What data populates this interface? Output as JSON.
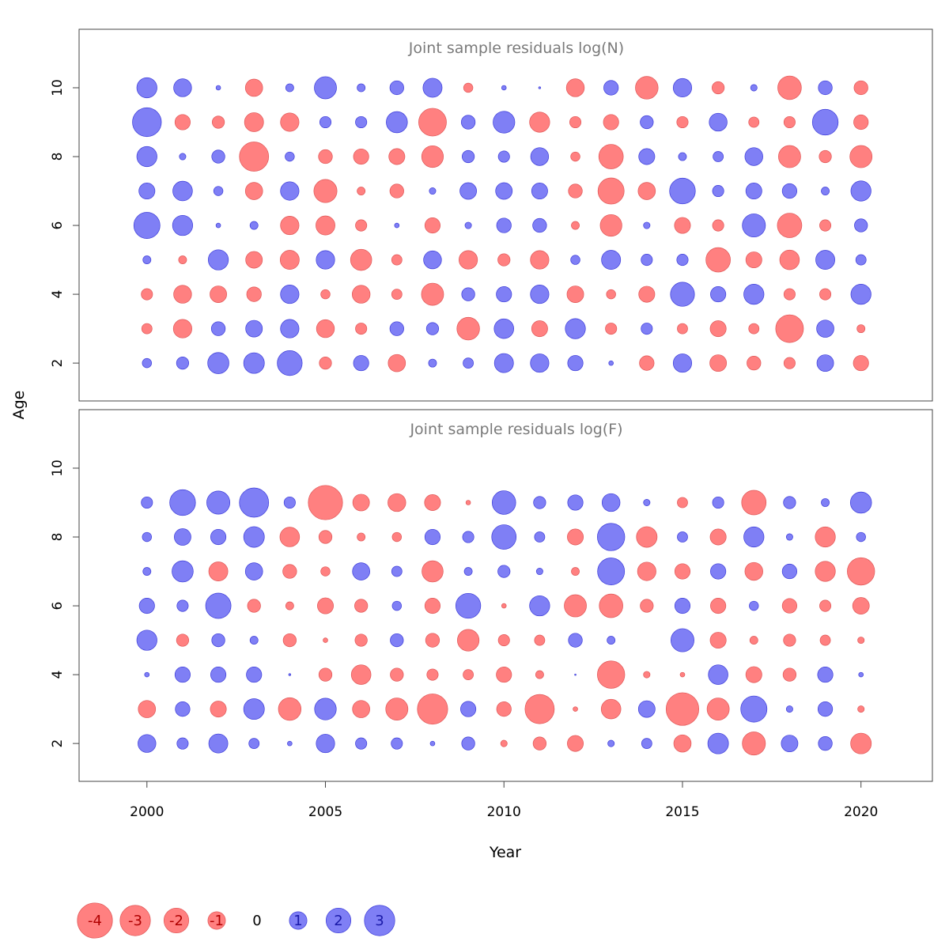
{
  "figure": {
    "ylabel": "Age",
    "xlabel": "Year",
    "x_ticks": [
      2000,
      2005,
      2010,
      2015,
      2020
    ],
    "y_ticks": [
      2,
      4,
      6,
      8,
      10
    ]
  },
  "colors": {
    "positive": "#7f7ff5",
    "positive_stroke": "#3d3dd9",
    "negative": "#ff8080",
    "negative_stroke": "#e05757",
    "title_text": "#7a7a7a",
    "axis": "#444444"
  },
  "chart_data": [
    {
      "type": "scatter",
      "title": "Joint sample residuals log(N)",
      "xlim": [
        1998.1,
        2022.0
      ],
      "ylim": [
        0.9,
        11.7
      ],
      "ages": [
        2,
        3,
        4,
        5,
        6,
        7,
        8,
        9,
        10
      ],
      "years": [
        2000,
        2001,
        2002,
        2003,
        2004,
        2005,
        2006,
        2007,
        2008,
        2009,
        2010,
        2011,
        2012,
        2013,
        2014,
        2015,
        2016,
        2017,
        2018,
        2019,
        2020
      ],
      "values_by_age": {
        "2": [
          0.4,
          0.7,
          2.1,
          2.0,
          2.9,
          -0.7,
          1.1,
          -1.4,
          0.3,
          0.5,
          1.7,
          1.6,
          1.1,
          0.1,
          -1.0,
          1.6,
          -1.3,
          -0.9,
          -0.6,
          1.3,
          -1.1
        ],
        "3": [
          -0.5,
          -1.6,
          0.9,
          1.3,
          1.6,
          -1.5,
          -0.6,
          0.9,
          0.7,
          -2.4,
          1.8,
          -1.2,
          1.9,
          -0.6,
          0.6,
          -0.5,
          -1.2,
          -0.5,
          -3.6,
          1.4,
          -0.3
        ],
        "4": [
          -0.6,
          -1.5,
          -1.3,
          -1.0,
          1.6,
          -0.4,
          -1.5,
          -0.5,
          -2.3,
          0.8,
          1.1,
          1.6,
          -1.3,
          -0.4,
          -1.2,
          2.7,
          1.1,
          1.9,
          -0.6,
          -0.6,
          1.9
        ],
        "5": [
          0.3,
          -0.3,
          1.9,
          -1.3,
          -1.7,
          1.6,
          -2.1,
          -0.5,
          1.5,
          -1.6,
          -0.7,
          -1.6,
          0.4,
          1.7,
          0.6,
          0.6,
          -2.8,
          -1.2,
          -1.8,
          1.7,
          0.5
        ],
        "6": [
          3.2,
          1.9,
          0.1,
          0.3,
          -1.6,
          -1.7,
          -0.6,
          0.1,
          -1.1,
          0.2,
          1.0,
          0.9,
          -0.3,
          -2.2,
          0.2,
          -1.2,
          -0.6,
          2.5,
          -2.8,
          -0.6,
          0.8
        ],
        "7": [
          1.2,
          1.8,
          0.4,
          -1.4,
          1.6,
          -2.5,
          -0.3,
          -0.9,
          0.2,
          1.3,
          1.3,
          1.2,
          -0.9,
          -3.2,
          -1.4,
          3.1,
          0.6,
          1.2,
          1.0,
          0.3,
          1.9
        ],
        "8": [
          1.9,
          0.2,
          0.8,
          -4.0,
          0.4,
          -0.9,
          -1.1,
          -1.2,
          -2.2,
          0.7,
          0.6,
          1.5,
          -0.4,
          -2.8,
          1.2,
          0.3,
          0.5,
          1.5,
          -2.3,
          -0.7,
          -2.3
        ],
        "9": [
          3.9,
          -1.1,
          -0.7,
          -1.7,
          -1.6,
          0.6,
          0.6,
          2.1,
          -3.6,
          0.9,
          2.2,
          -1.9,
          -0.6,
          -1.1,
          0.8,
          -0.6,
          1.5,
          -0.5,
          -0.6,
          3.1,
          -1.0
        ],
        "10": [
          1.9,
          1.5,
          0.1,
          -1.4,
          0.3,
          2.3,
          0.3,
          0.9,
          1.7,
          -0.4,
          0.1,
          0.02,
          -1.5,
          1.0,
          -2.4,
          1.6,
          -0.7,
          0.2,
          -2.6,
          0.9,
          -0.9
        ]
      }
    },
    {
      "type": "scatter",
      "title": "Joint sample residuals log(F)",
      "xlim": [
        1998.1,
        2022.0
      ],
      "ylim": [
        0.9,
        11.7
      ],
      "ages": [
        2,
        3,
        4,
        5,
        6,
        7,
        8,
        9
      ],
      "years": [
        2000,
        2001,
        2002,
        2003,
        2004,
        2005,
        2006,
        2007,
        2008,
        2009,
        2010,
        2011,
        2012,
        2013,
        2014,
        2015,
        2016,
        2017,
        2018,
        2019,
        2020
      ],
      "values_by_age": {
        "2": [
          1.5,
          0.6,
          1.7,
          0.5,
          0.1,
          1.6,
          0.6,
          0.6,
          0.1,
          0.8,
          -0.2,
          -0.8,
          -1.2,
          0.2,
          0.5,
          -1.4,
          2.0,
          -2.5,
          1.3,
          0.9,
          -2.0
        ],
        "3": [
          -1.4,
          1.0,
          -1.2,
          2.0,
          -2.4,
          2.2,
          -1.4,
          -2.3,
          -4.3,
          1.1,
          -1.0,
          -4.0,
          -0.1,
          -1.8,
          1.3,
          -5.0,
          -2.3,
          3.2,
          0.2,
          1.0,
          -0.2
        ],
        "4": [
          0.1,
          1.1,
          1.1,
          1.1,
          0.02,
          -0.8,
          -1.8,
          -0.8,
          -0.6,
          -0.5,
          -1.1,
          -0.3,
          0.01,
          -3.5,
          -0.2,
          -0.1,
          1.8,
          -1.2,
          -0.8,
          1.1,
          0.1
        ],
        "5": [
          1.9,
          -0.7,
          0.8,
          0.3,
          -0.8,
          -0.1,
          -0.7,
          0.8,
          -0.9,
          -2.2,
          -0.6,
          -0.5,
          0.9,
          0.3,
          0.0,
          2.5,
          -1.2,
          -0.3,
          -0.7,
          -0.5,
          -0.2
        ],
        "6": [
          1.1,
          0.6,
          3.0,
          -0.8,
          -0.3,
          -1.2,
          -0.8,
          0.4,
          -1.1,
          2.9,
          -0.1,
          1.9,
          -2.3,
          -2.6,
          -0.8,
          1.1,
          -1.1,
          0.4,
          -1.0,
          -0.6,
          -1.3
        ],
        "7": [
          0.3,
          2.1,
          -1.7,
          1.4,
          -0.9,
          -0.4,
          1.4,
          0.5,
          -2.1,
          0.3,
          0.7,
          0.2,
          -0.3,
          3.4,
          -1.6,
          -1.1,
          1.1,
          -1.5,
          1.0,
          -1.9,
          -3.5
        ],
        "8": [
          0.4,
          1.3,
          1.1,
          2.0,
          -1.8,
          -0.8,
          -0.3,
          -0.4,
          1.1,
          0.6,
          2.8,
          0.5,
          -1.2,
          3.5,
          -2.0,
          0.5,
          -1.2,
          1.9,
          0.2,
          -1.9,
          0.4
        ],
        "9": [
          0.6,
          3.1,
          2.5,
          4.0,
          0.6,
          -5.5,
          -1.3,
          -1.5,
          -1.2,
          -0.1,
          2.6,
          0.7,
          1.1,
          1.5,
          0.2,
          -0.5,
          0.6,
          -2.8,
          0.7,
          0.3,
          2.1
        ]
      }
    }
  ],
  "legend": {
    "entries": [
      {
        "label": "-4",
        "value": -4
      },
      {
        "label": "-3",
        "value": -3
      },
      {
        "label": "-2",
        "value": -2
      },
      {
        "label": "-1",
        "value": -1
      },
      {
        "label": "0",
        "value": 0
      },
      {
        "label": "1",
        "value": 1
      },
      {
        "label": "2",
        "value": 2
      },
      {
        "label": "3",
        "value": 3
      }
    ]
  }
}
